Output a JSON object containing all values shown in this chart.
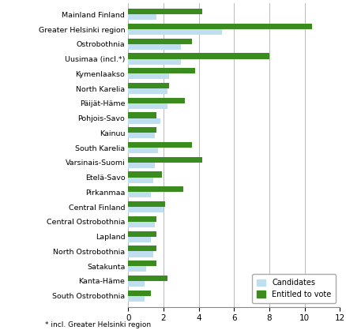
{
  "regions": [
    "Mainland Finland",
    "Greater Helsinki region",
    "Ostrobothnia",
    "Uusimaa (incl.*)",
    "Kymenlaakso",
    "North Karelia",
    "Päijät-Häme",
    "Pohjois-Savo",
    "Kainuu",
    "South Karelia",
    "Varsinais-Suomi",
    "Etelä-Savo",
    "Pirkanmaa",
    "Central Finland",
    "Central Ostrobothnia",
    "Lapland",
    "North Ostrobothnia",
    "Satakunta",
    "Kanta-Häme",
    "South Ostrobothnia"
  ],
  "candidates": [
    1.6,
    5.3,
    3.0,
    3.0,
    2.3,
    2.2,
    2.2,
    1.8,
    1.5,
    1.7,
    1.5,
    1.4,
    1.3,
    2.0,
    1.5,
    1.3,
    1.4,
    1.0,
    0.9,
    0.9
  ],
  "entitled_to_vote": [
    4.2,
    10.4,
    3.6,
    8.0,
    3.8,
    2.3,
    3.2,
    1.6,
    1.6,
    3.6,
    4.2,
    1.9,
    3.1,
    2.1,
    1.6,
    1.6,
    1.6,
    1.6,
    2.2,
    1.3
  ],
  "candidate_color": "#bfdfef",
  "entitled_color": "#3a8c1e",
  "xlim": [
    0,
    12
  ],
  "xticks": [
    0,
    2,
    4,
    6,
    8,
    10,
    12
  ],
  "xlabel": "%",
  "footnote": "* incl. Greater Helsinki region",
  "legend_candidates": "Candidates",
  "legend_entitled": "Entitled to vote",
  "background_color": "#ffffff",
  "grid_color": "#b0b0b0"
}
